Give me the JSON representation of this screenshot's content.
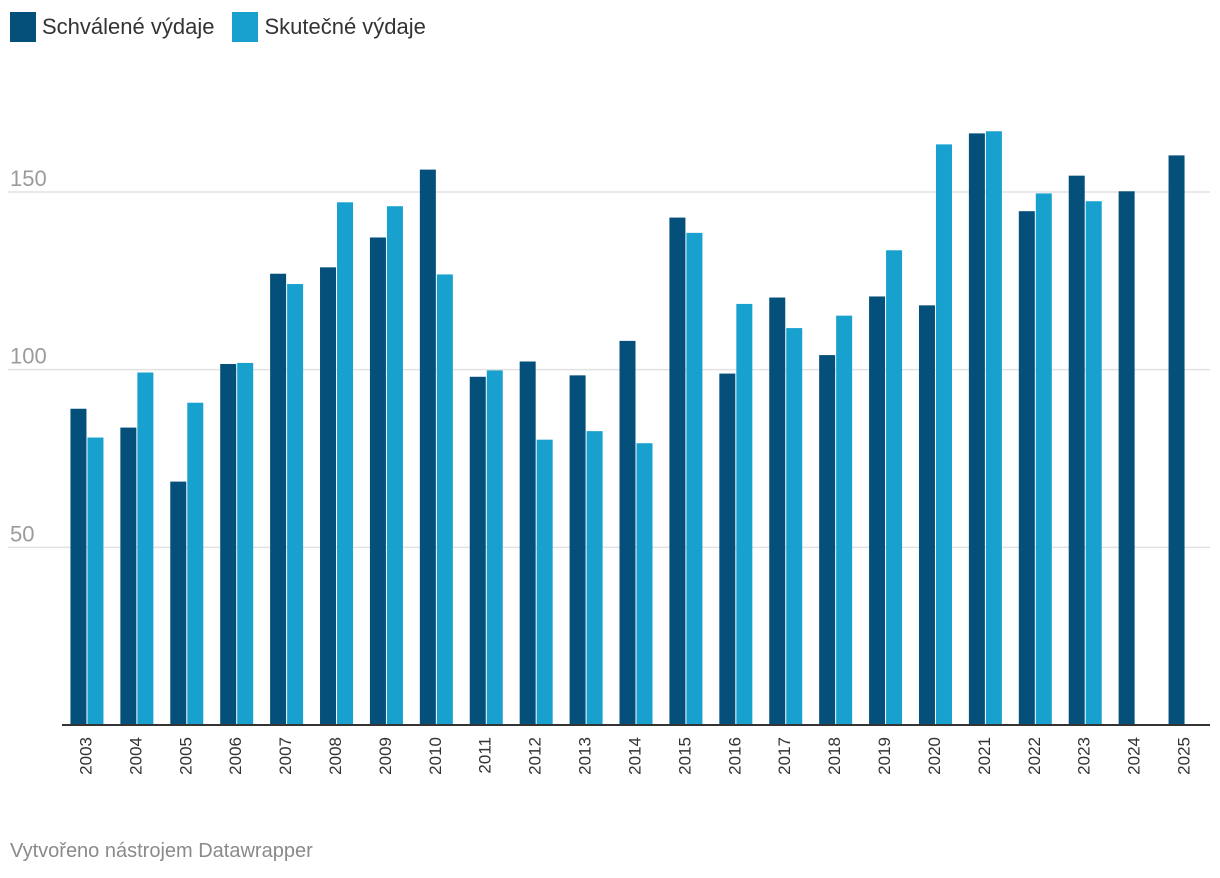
{
  "legend": {
    "items": [
      {
        "label": "Schválené výdaje",
        "color": "#04507a"
      },
      {
        "label": "Skutečné výdaje",
        "color": "#18a1cf"
      }
    ]
  },
  "footer": {
    "credit": "Vytvořeno nástrojem Datawrapper"
  },
  "chart_data": {
    "type": "bar",
    "title": "",
    "xlabel": "",
    "ylabel": "",
    "ylim": [
      0,
      180
    ],
    "yticks": [
      50,
      100,
      150
    ],
    "categories": [
      "2003",
      "2004",
      "2005",
      "2006",
      "2007",
      "2008",
      "2009",
      "2010",
      "2011",
      "2012",
      "2013",
      "2014",
      "2015",
      "2016",
      "2017",
      "2018",
      "2019",
      "2020",
      "2021",
      "2022",
      "2023",
      "2024",
      "2025"
    ],
    "series": [
      {
        "name": "Schválené výdaje",
        "color": "#04507a",
        "values": [
          89,
          83.7,
          68.5,
          101.6,
          127,
          128.8,
          137.2,
          156.3,
          98,
          102.3,
          98.4,
          108.1,
          142.8,
          98.9,
          120.3,
          104.1,
          120.6,
          118.1,
          166.5,
          144.6,
          154.6,
          150.2,
          160.3
        ]
      },
      {
        "name": "Skutečné výdaje",
        "color": "#18a1cf",
        "values": [
          80.9,
          99.2,
          90.7,
          101.9,
          124.1,
          147.1,
          146,
          126.8,
          99.8,
          80.3,
          82.7,
          79.3,
          138.5,
          118.5,
          111.7,
          115.2,
          133.6,
          163.4,
          167.1,
          149.6,
          147.4,
          null,
          null
        ]
      }
    ],
    "grid": true,
    "legend_position": "top-left"
  }
}
